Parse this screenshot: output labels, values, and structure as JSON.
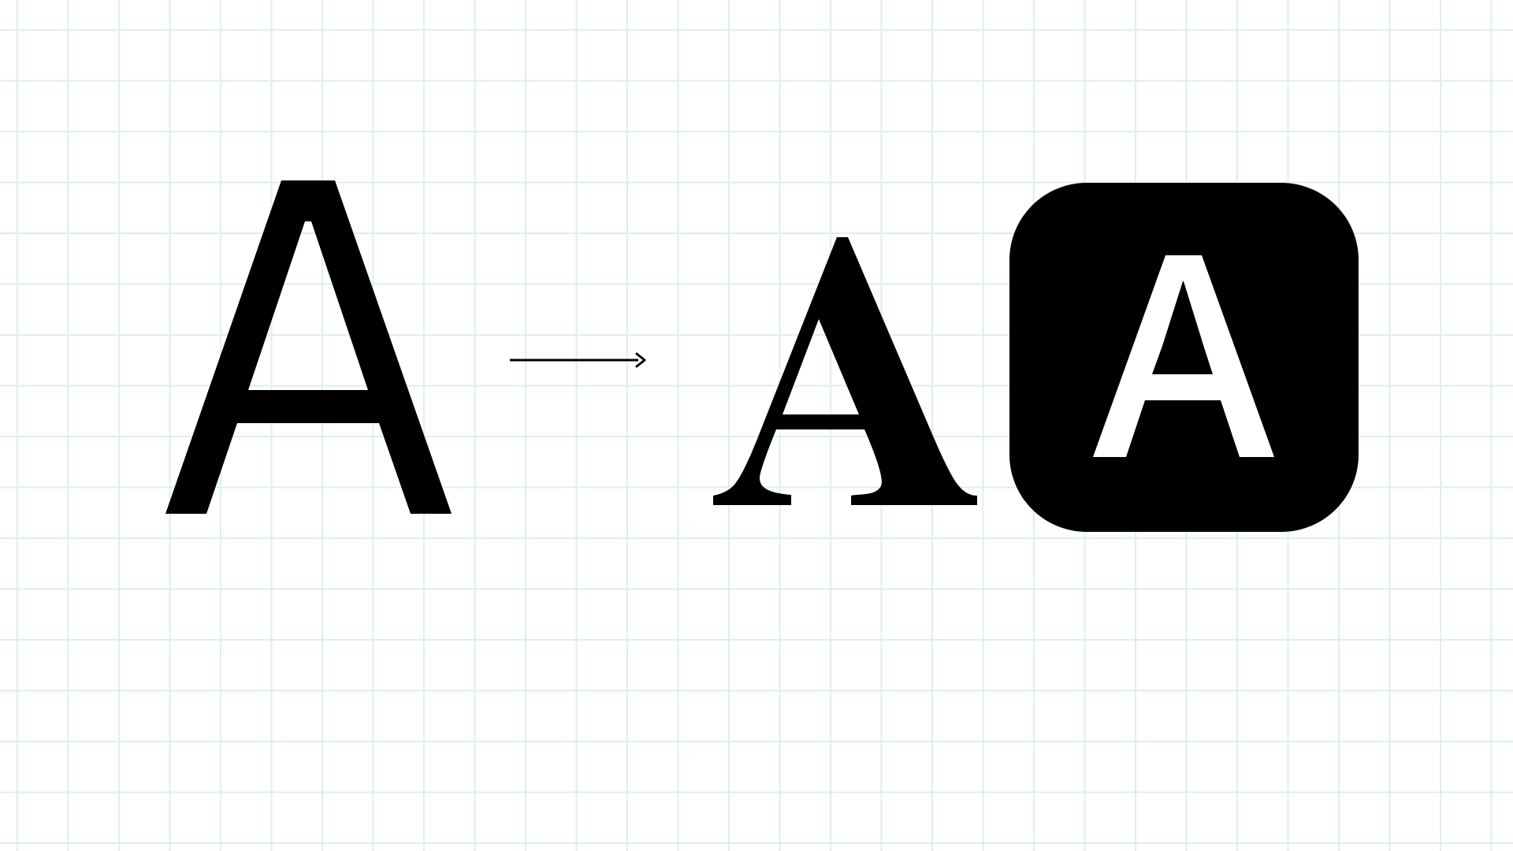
{
  "stage1": {
    "letter": "A",
    "style": "sans-serif"
  },
  "transition": {
    "icon": "arrow-right-icon"
  },
  "stage2": {
    "letter": "A",
    "style": "bold-serif"
  },
  "stage3": {
    "letter": "A",
    "style": "stencil-on-rounded-square",
    "icon": "app-icon"
  },
  "colors": {
    "ink": "#000000",
    "background": "#ffffff",
    "grid": "#dcefef"
  }
}
